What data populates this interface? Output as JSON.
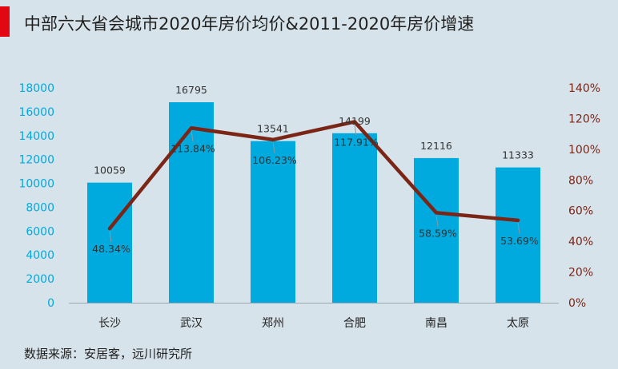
{
  "title": "中部六大省会城市2020年房价均价&2011-2020年房价增速",
  "source": "数据来源：安居客，远川研究所",
  "colors": {
    "bar": "#00a9de",
    "line": "#7b2516",
    "accent": "#e30613",
    "left_axis_text": "#00a9de",
    "right_axis_text": "#7b2516",
    "background": "#d7e3ea"
  },
  "chart_data": {
    "type": "bar",
    "categories": [
      "长沙",
      "武汉",
      "郑州",
      "合肥",
      "南昌",
      "太原"
    ],
    "series": [
      {
        "type": "bar",
        "axis": "left",
        "values": [
          10059,
          16795,
          13541,
          14199,
          12116,
          11333
        ],
        "labels": [
          "10059",
          "16795",
          "13541",
          "14199",
          "12116",
          "11333"
        ]
      },
      {
        "type": "line",
        "axis": "right",
        "values": [
          48.34,
          113.84,
          106.23,
          117.91,
          58.59,
          53.69
        ],
        "labels": [
          "48.34%",
          "113.84%",
          "106.23%",
          "117.91%",
          "58.59%",
          "53.69%"
        ]
      }
    ],
    "y_left": {
      "ylim": [
        0,
        18000
      ],
      "ticks": [
        "0",
        "2000",
        "4000",
        "6000",
        "8000",
        "10000",
        "12000",
        "14000",
        "16000",
        "18000"
      ]
    },
    "y_right": {
      "ylim": [
        0,
        140
      ],
      "ticks": [
        "0%",
        "20%",
        "40%",
        "60%",
        "80%",
        "100%",
        "120%",
        "140%"
      ]
    },
    "grid": false,
    "legend": "none"
  }
}
